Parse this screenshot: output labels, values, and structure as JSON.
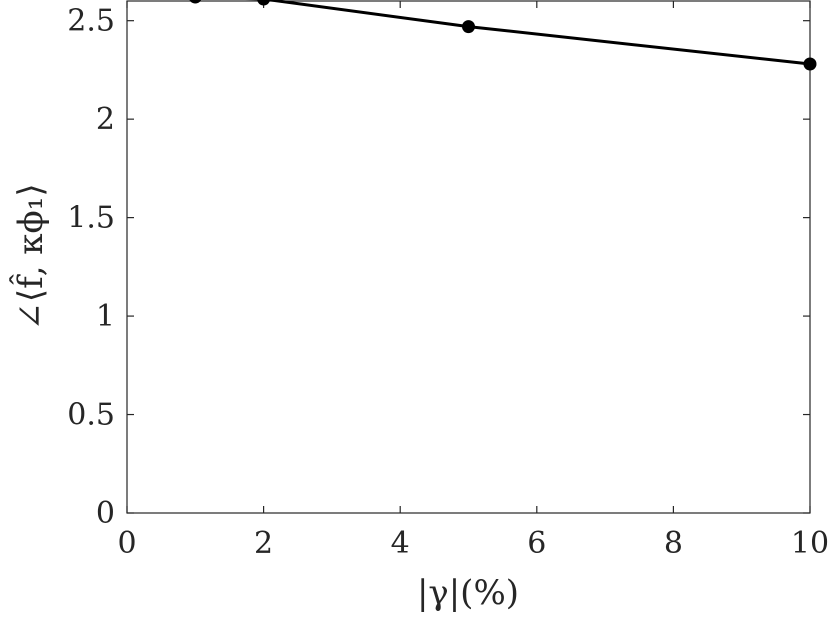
{
  "chart_data": {
    "type": "line",
    "title": "",
    "xlabel": "|γ|(%)",
    "ylabel": "∠⟨f̂, κϕ₁⟩",
    "xlim": [
      0,
      10
    ],
    "ylim": [
      0,
      2.6
    ],
    "grid": false,
    "x_ticks": [
      0,
      2,
      4,
      6,
      8,
      10
    ],
    "x_tick_labels": [
      "0",
      "2",
      "4",
      "6",
      "8",
      "10"
    ],
    "y_ticks": [
      0,
      0.5,
      1,
      1.5,
      2,
      2.5
    ],
    "y_tick_labels": [
      "0",
      "0.5",
      "1",
      "1.5",
      "2",
      "2.5"
    ],
    "series": [
      {
        "x": [
          1,
          2,
          5,
          10
        ],
        "y": [
          2.62,
          2.61,
          2.47,
          2.28
        ]
      }
    ],
    "colors": {
      "line": "#000000",
      "axes": "#262626"
    }
  }
}
